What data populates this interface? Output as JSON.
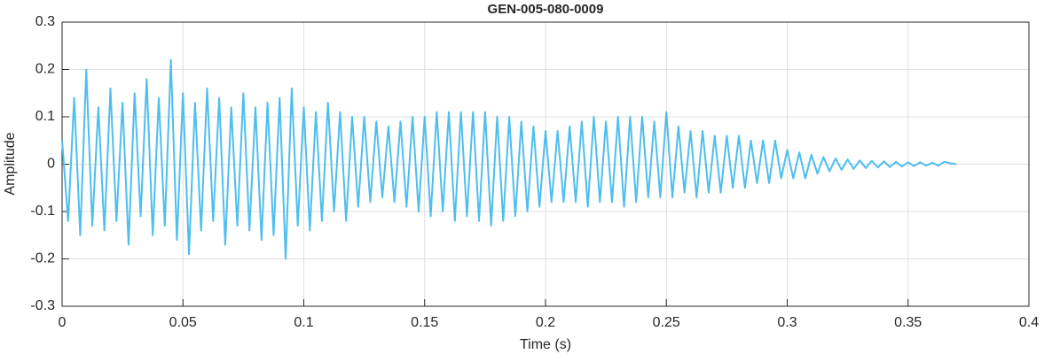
{
  "chart_data": {
    "type": "line",
    "title": "GEN-005-080-0009",
    "xlabel": "Time (s)",
    "ylabel": "Amplitude",
    "x": [
      0,
      0.0025,
      0.005,
      0.0075,
      0.01,
      0.0125,
      0.015,
      0.0175,
      0.02,
      0.0225,
      0.025,
      0.0275,
      0.03,
      0.0325,
      0.035,
      0.0375,
      0.04,
      0.0425,
      0.045,
      0.0475,
      0.05,
      0.0525,
      0.055,
      0.0575,
      0.06,
      0.0625,
      0.065,
      0.0675,
      0.07,
      0.0725,
      0.075,
      0.0775,
      0.08,
      0.0825,
      0.085,
      0.0875,
      0.09,
      0.0925,
      0.095,
      0.0975,
      0.1,
      0.1025,
      0.105,
      0.1075,
      0.11,
      0.1125,
      0.115,
      0.1175,
      0.12,
      0.1225,
      0.125,
      0.1275,
      0.13,
      0.1325,
      0.135,
      0.1375,
      0.14,
      0.1425,
      0.145,
      0.1475,
      0.15,
      0.1525,
      0.155,
      0.1575,
      0.16,
      0.1625,
      0.165,
      0.1675,
      0.17,
      0.1725,
      0.175,
      0.1775,
      0.18,
      0.1825,
      0.185,
      0.1875,
      0.19,
      0.1925,
      0.195,
      0.1975,
      0.2,
      0.2025,
      0.205,
      0.2075,
      0.21,
      0.2125,
      0.215,
      0.2175,
      0.22,
      0.2225,
      0.225,
      0.2275,
      0.23,
      0.2325,
      0.235,
      0.2375,
      0.24,
      0.2425,
      0.245,
      0.2475,
      0.25,
      0.2525,
      0.255,
      0.2575,
      0.26,
      0.2625,
      0.265,
      0.2675,
      0.27,
      0.2725,
      0.275,
      0.2775,
      0.28,
      0.2825,
      0.285,
      0.2875,
      0.29,
      0.2925,
      0.295,
      0.2975,
      0.3,
      0.3025,
      0.305,
      0.3075,
      0.31,
      0.3125,
      0.315,
      0.3175,
      0.32,
      0.3225,
      0.325,
      0.3275,
      0.33,
      0.3325,
      0.335,
      0.3375,
      0.34,
      0.3425,
      0.345,
      0.3475,
      0.35,
      0.3525,
      0.355,
      0.3575,
      0.36,
      0.3625,
      0.365,
      0.3675,
      0.37
    ],
    "series": [
      {
        "color": "#4dbeee",
        "values": [
          0.05,
          -0.12,
          0.14,
          -0.15,
          0.2,
          -0.13,
          0.12,
          -0.14,
          0.16,
          -0.12,
          0.13,
          -0.17,
          0.15,
          -0.11,
          0.18,
          -0.15,
          0.14,
          -0.13,
          0.22,
          -0.16,
          0.15,
          -0.19,
          0.13,
          -0.14,
          0.16,
          -0.12,
          0.14,
          -0.17,
          0.12,
          -0.13,
          0.15,
          -0.14,
          0.12,
          -0.16,
          0.13,
          -0.15,
          0.14,
          -0.2,
          0.16,
          -0.13,
          0.12,
          -0.14,
          0.11,
          -0.12,
          0.13,
          -0.1,
          0.11,
          -0.12,
          0.1,
          -0.09,
          0.1,
          -0.08,
          0.09,
          -0.07,
          0.08,
          -0.08,
          0.09,
          -0.09,
          0.1,
          -0.1,
          0.1,
          -0.11,
          0.11,
          -0.1,
          0.11,
          -0.12,
          0.11,
          -0.11,
          0.11,
          -0.12,
          0.11,
          -0.13,
          0.1,
          -0.12,
          0.1,
          -0.11,
          0.09,
          -0.1,
          0.08,
          -0.09,
          0.07,
          -0.08,
          0.07,
          -0.08,
          0.08,
          -0.08,
          0.09,
          -0.09,
          0.1,
          -0.08,
          0.09,
          -0.08,
          0.1,
          -0.09,
          0.1,
          -0.08,
          0.1,
          -0.07,
          0.09,
          -0.07,
          0.11,
          -0.07,
          0.08,
          -0.06,
          0.07,
          -0.07,
          0.07,
          -0.06,
          0.06,
          -0.06,
          0.06,
          -0.05,
          0.06,
          -0.05,
          0.05,
          -0.04,
          0.05,
          -0.04,
          0.05,
          -0.03,
          0.03,
          -0.03,
          0.025,
          -0.03,
          0.02,
          -0.02,
          0.015,
          -0.015,
          0.012,
          -0.012,
          0.01,
          -0.01,
          0.008,
          -0.008,
          0.007,
          -0.007,
          0.006,
          -0.006,
          0.005,
          -0.005,
          0.004,
          -0.004,
          0.004,
          -0.003,
          0.003,
          -0.003,
          0.005,
          0.002,
          0
        ]
      }
    ],
    "xlim": [
      0,
      0.4
    ],
    "xticks": [
      0,
      0.05,
      0.1,
      0.15,
      0.2,
      0.25,
      0.3,
      0.35,
      0.4
    ],
    "ylim": [
      -0.3,
      0.3
    ],
    "yticks": [
      -0.3,
      -0.2,
      -0.1,
      0,
      0.1,
      0.2,
      0.3
    ],
    "grid": true
  }
}
